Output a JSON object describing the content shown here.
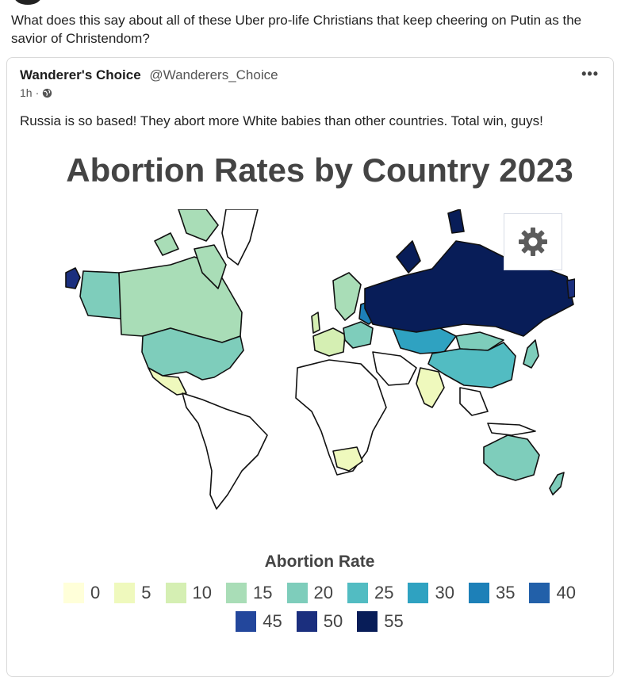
{
  "post": {
    "text": "What does this say about all of these Uber pro-life Christians that keep cheering on Putin as the savior of Christendom?"
  },
  "quoted": {
    "name": "Wanderer's Choice",
    "handle": "@Wanderers_Choice",
    "time": "1h",
    "separator": "·",
    "more": "•••",
    "text": "Russia is so based! They abort more White babies than other countries. Total win, guys!"
  },
  "chart_data": {
    "type": "choropleth",
    "title": "Abortion Rates by Country 2023",
    "legend_title": "Abortion Rate",
    "scale": [
      {
        "value": "0",
        "color": "#ffffd9"
      },
      {
        "value": "5",
        "color": "#eff9bd"
      },
      {
        "value": "10",
        "color": "#d5efb3"
      },
      {
        "value": "15",
        "color": "#a9ddb7"
      },
      {
        "value": "20",
        "color": "#7ecdbb"
      },
      {
        "value": "25",
        "color": "#52bcc2"
      },
      {
        "value": "30",
        "color": "#2fa2c1"
      },
      {
        "value": "35",
        "color": "#1d80b8"
      },
      {
        "value": "40",
        "color": "#2260a9"
      },
      {
        "value": "45",
        "color": "#23479c"
      },
      {
        "value": "50",
        "color": "#1b2f7e"
      },
      {
        "value": "55",
        "color": "#081d58"
      }
    ]
  },
  "icons": {
    "globe": "globe-icon",
    "settings": "gear-icon",
    "more": "more-icon"
  }
}
